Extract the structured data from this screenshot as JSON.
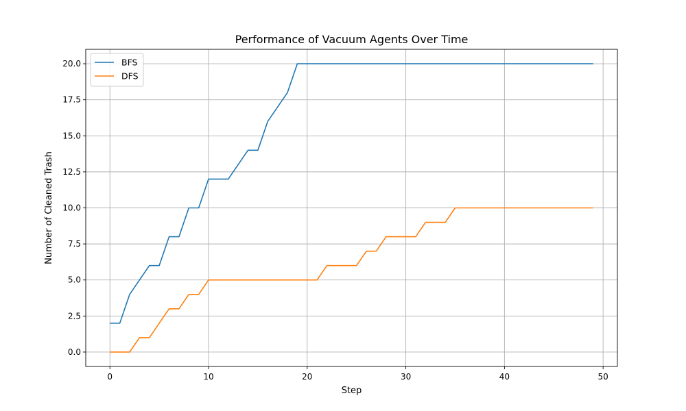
{
  "chart_data": {
    "type": "line",
    "title": "Performance of Vacuum Agents Over Time",
    "xlabel": "Step",
    "ylabel": "Number of Cleaned Trash",
    "xlim": [
      -2.45,
      51.45
    ],
    "ylim": [
      -1.0,
      21.0
    ],
    "xticks": [
      0,
      10,
      20,
      30,
      40,
      50
    ],
    "xtick_labels": [
      "0",
      "10",
      "20",
      "30",
      "40",
      "50"
    ],
    "yticks": [
      0.0,
      2.5,
      5.0,
      7.5,
      10.0,
      12.5,
      15.0,
      17.5,
      20.0
    ],
    "ytick_labels": [
      "0.0",
      "2.5",
      "5.0",
      "7.5",
      "10.0",
      "12.5",
      "15.0",
      "17.5",
      "20.0"
    ],
    "grid": true,
    "legend_position": "top-left",
    "x": [
      0,
      1,
      2,
      3,
      4,
      5,
      6,
      7,
      8,
      9,
      10,
      11,
      12,
      13,
      14,
      15,
      16,
      17,
      18,
      19,
      20,
      21,
      22,
      23,
      24,
      25,
      26,
      27,
      28,
      29,
      30,
      31,
      32,
      33,
      34,
      35,
      36,
      37,
      38,
      39,
      40,
      41,
      42,
      43,
      44,
      45,
      46,
      47,
      48,
      49
    ],
    "series": [
      {
        "name": "BFS",
        "color": "#1f77b4",
        "values": [
          2,
          2,
          4,
          5,
          6,
          6,
          8,
          8,
          10,
          10,
          12,
          12,
          12,
          13,
          14,
          14,
          16,
          17,
          18,
          20,
          20,
          20,
          20,
          20,
          20,
          20,
          20,
          20,
          20,
          20,
          20,
          20,
          20,
          20,
          20,
          20,
          20,
          20,
          20,
          20,
          20,
          20,
          20,
          20,
          20,
          20,
          20,
          20,
          20,
          20
        ]
      },
      {
        "name": "DFS",
        "color": "#ff7f0e",
        "values": [
          0,
          0,
          0,
          1,
          1,
          2,
          3,
          3,
          4,
          4,
          5,
          5,
          5,
          5,
          5,
          5,
          5,
          5,
          5,
          5,
          5,
          5,
          6,
          6,
          6,
          6,
          7,
          7,
          8,
          8,
          8,
          8,
          9,
          9,
          9,
          10,
          10,
          10,
          10,
          10,
          10,
          10,
          10,
          10,
          10,
          10,
          10,
          10,
          10,
          10
        ]
      }
    ]
  }
}
